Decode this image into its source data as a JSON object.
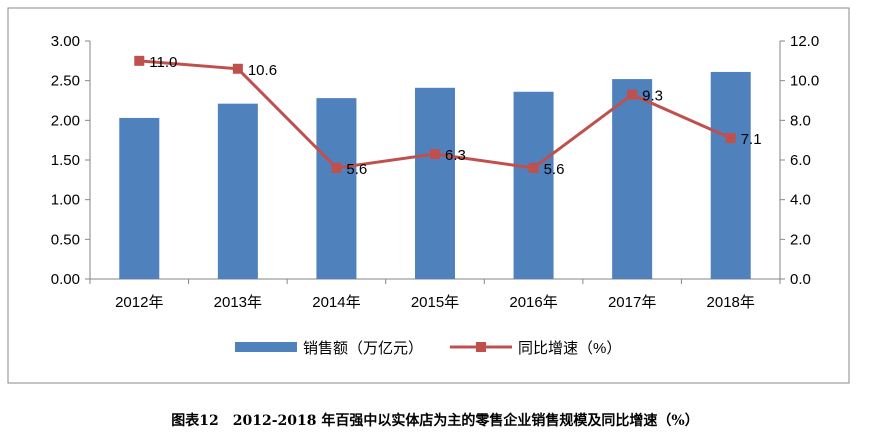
{
  "caption": "图表12　2012-2018 年百强中以实体店为主的零售企业销售规模及同比增速（%）",
  "chart_data": {
    "type": "bar+line",
    "categories": [
      "2012年",
      "2013年",
      "2014年",
      "2015年",
      "2016年",
      "2017年",
      "2018年"
    ],
    "series": [
      {
        "name": "销售额（万亿元）",
        "type": "bar",
        "axis": "left",
        "color": "#4F81BD",
        "values": [
          2.03,
          2.21,
          2.28,
          2.41,
          2.36,
          2.52,
          2.61
        ]
      },
      {
        "name": "同比增速（%）",
        "type": "line",
        "axis": "right",
        "color": "#C0504D",
        "values": [
          11.0,
          10.6,
          5.6,
          6.3,
          5.6,
          9.3,
          7.1
        ],
        "labels": [
          "11.0",
          "10.6",
          "5.6",
          "6.3",
          "5.6",
          "9.3",
          "7.1"
        ]
      }
    ],
    "y_left": {
      "range": [
        0,
        3
      ],
      "ticks": [
        "0.00",
        "0.50",
        "1.00",
        "1.50",
        "2.00",
        "2.50",
        "3.00"
      ]
    },
    "y_right": {
      "range": [
        0,
        12
      ],
      "ticks": [
        "0.0",
        "2.0",
        "4.0",
        "6.0",
        "8.0",
        "10.0",
        "12.0"
      ]
    },
    "grid": false,
    "legend": "bottom"
  }
}
